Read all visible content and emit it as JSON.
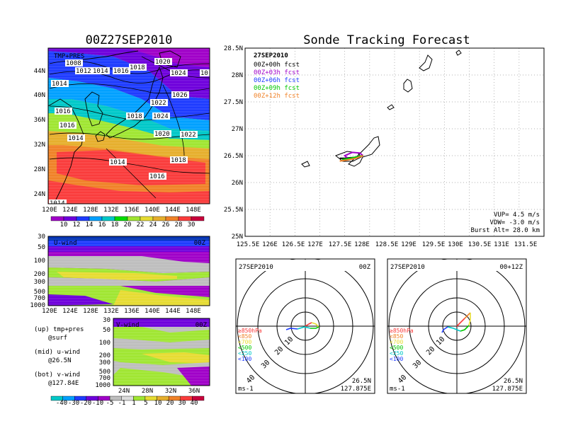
{
  "map": {
    "title": "00Z27SEP2010",
    "label": "TMP+PRES",
    "lat_ticks": [
      "44N",
      "40N",
      "36N",
      "32N",
      "28N",
      "24N"
    ],
    "lon_ticks": [
      "120E",
      "124E",
      "128E",
      "132E",
      "136E",
      "140E",
      "144E",
      "148E"
    ],
    "isobars": [
      {
        "label": "1008"
      },
      {
        "label": "1012"
      },
      {
        "label": "1014"
      },
      {
        "label": "1016"
      },
      {
        "label": "1018"
      },
      {
        "label": "1020"
      },
      {
        "label": "1024"
      },
      {
        "label": "10"
      },
      {
        "label": "1014"
      },
      {
        "label": "1026"
      },
      {
        "label": "1016"
      },
      {
        "label": "1022"
      },
      {
        "label": "1018"
      },
      {
        "label": "1024"
      },
      {
        "label": "1016"
      },
      {
        "label": "1020"
      },
      {
        "label": "1022"
      },
      {
        "label": "1014"
      },
      {
        "label": "1014"
      },
      {
        "label": "1018"
      },
      {
        "label": "1016"
      },
      {
        "label": "1014"
      }
    ],
    "colorbar": {
      "labels": [
        "10",
        "12",
        "14",
        "16",
        "18",
        "20",
        "22",
        "24",
        "26",
        "28",
        "30"
      ],
      "colors": [
        "#a000c8",
        "#6e00dc",
        "#1e3cff",
        "#00a0ff",
        "#00c8c8",
        "#00dc00",
        "#a0e632",
        "#e6dc32",
        "#e6af2d",
        "#f08228",
        "#fa3c3c",
        "#c8003c"
      ]
    }
  },
  "uwind": {
    "label": "U-wind",
    "time": "00Z",
    "y_ticks": [
      "30",
      "50",
      "100",
      "200",
      "300",
      "500",
      "700",
      "1000"
    ],
    "x_ticks": [
      "120E",
      "124E",
      "128E",
      "132E",
      "136E",
      "140E",
      "144E",
      "148E"
    ]
  },
  "vwind": {
    "label": "V-wind",
    "time": "00Z",
    "y_ticks": [
      "30",
      "50",
      "100",
      "200",
      "300",
      "500",
      "700",
      "1000"
    ],
    "x_ticks": [
      "24N",
      "28N",
      "32N",
      "36N"
    ]
  },
  "notes": [
    {
      "line1": "(up) tmp+pres",
      "line2": "@surf"
    },
    {
      "line1": "(mid) u-wind",
      "line2": "@26.5N"
    },
    {
      "line1": "(bot) v-wind",
      "line2": "@127.84E"
    }
  ],
  "wind_colorbar": {
    "labels": [
      "-40",
      "-30",
      "-20",
      "-10",
      "-5",
      "-1",
      "1",
      "5",
      "10",
      "20",
      "30",
      "40"
    ],
    "colors": [
      "#00c8c8",
      "#00a0ff",
      "#1e3cff",
      "#6e00dc",
      "#a000c8",
      "#bebebe",
      "#dcdcdc",
      "#a0e632",
      "#e6dc32",
      "#e6af2d",
      "#f08228",
      "#fa3c3c",
      "#c8003c"
    ]
  },
  "tracking": {
    "title": "Sonde Tracking Forecast",
    "date": "27SEP2010",
    "legend": [
      {
        "label": "00Z+00h fcst",
        "color": "#000000"
      },
      {
        "label": "00Z+03h fcst",
        "color": "#a000c8"
      },
      {
        "label": "00Z+06h fcst",
        "color": "#1e3cff"
      },
      {
        "label": "00Z+09h fcst",
        "color": "#00c800"
      },
      {
        "label": "00Z+12h fcst",
        "color": "#f08228"
      }
    ],
    "lat_ticks": [
      "28.5N",
      "28N",
      "27.5N",
      "27N",
      "26.5N",
      "26N",
      "25.5N",
      "25N"
    ],
    "lon_ticks": [
      "125.5E",
      "126E",
      "126.5E",
      "127E",
      "127.5E",
      "128E",
      "128.5E",
      "129E",
      "129.5E",
      "130E",
      "130.5E",
      "131E",
      "131.5E"
    ],
    "params": {
      "vup": "VUP= 4.5 m/s",
      "vdw": "VDW= -3.0 m/s",
      "burst": "Burst Alt= 28.0 km"
    }
  },
  "polar_left": {
    "date": "27SEP2010",
    "time": "00Z",
    "ring_labels": [
      "10",
      "20",
      "30",
      "40"
    ],
    "levels": [
      {
        "label": "≥850hPa",
        "color": "#fa3c3c"
      },
      {
        "label": "<850",
        "color": "#f08228"
      },
      {
        "label": "<700",
        "color": "#e6dc32"
      },
      {
        "label": "<500",
        "color": "#00c800"
      },
      {
        "label": "<250",
        "color": "#00c8c8"
      },
      {
        "label": "<100",
        "color": "#1e3cff"
      }
    ],
    "unit": "ms-1",
    "loc_lat": "26.5N",
    "loc_lon": "127.875E"
  },
  "polar_right": {
    "date": "27SEP2010",
    "time": "00+12Z",
    "ring_labels": [
      "10",
      "20",
      "30",
      "40"
    ],
    "levels": [
      {
        "label": "≥850hPa",
        "color": "#fa3c3c"
      },
      {
        "label": "<850",
        "color": "#f08228"
      },
      {
        "label": "<700",
        "color": "#e6dc32"
      },
      {
        "label": "<500",
        "color": "#00c800"
      },
      {
        "label": "<250",
        "color": "#00c8c8"
      },
      {
        "label": "<100",
        "color": "#1e3cff"
      }
    ],
    "unit": "ms-1",
    "loc_lat": "26.5N",
    "loc_lon": "127.875E"
  },
  "chart_data": [
    {
      "type": "line",
      "title": "Sonde Tracking Forecast",
      "xlim": [
        125.5,
        131.5
      ],
      "ylim": [
        25,
        28.5
      ],
      "x_unit": "deg E",
      "y_unit": "deg N",
      "series": [
        {
          "name": "00Z+00h fcst",
          "x": [
            127.87,
            127.75,
            127.6,
            127.5,
            127.4
          ],
          "y": [
            26.5,
            26.47,
            26.46,
            26.45,
            26.45
          ]
        },
        {
          "name": "00Z+03h fcst",
          "x": [
            127.87,
            127.8,
            127.65,
            127.5,
            127.55
          ],
          "y": [
            26.5,
            26.55,
            26.56,
            26.5,
            26.46
          ]
        },
        {
          "name": "00Z+06h fcst",
          "x": [
            127.87,
            127.78,
            127.6,
            127.45
          ],
          "y": [
            26.5,
            26.48,
            26.45,
            26.42
          ]
        },
        {
          "name": "00Z+09h fcst",
          "x": [
            127.87,
            127.75,
            127.6,
            127.45
          ],
          "y": [
            26.5,
            26.48,
            26.45,
            26.43
          ]
        },
        {
          "name": "00Z+12h fcst",
          "x": [
            127.87,
            127.72,
            127.55,
            127.4
          ],
          "y": [
            26.5,
            26.45,
            26.42,
            26.4
          ]
        }
      ]
    }
  ]
}
